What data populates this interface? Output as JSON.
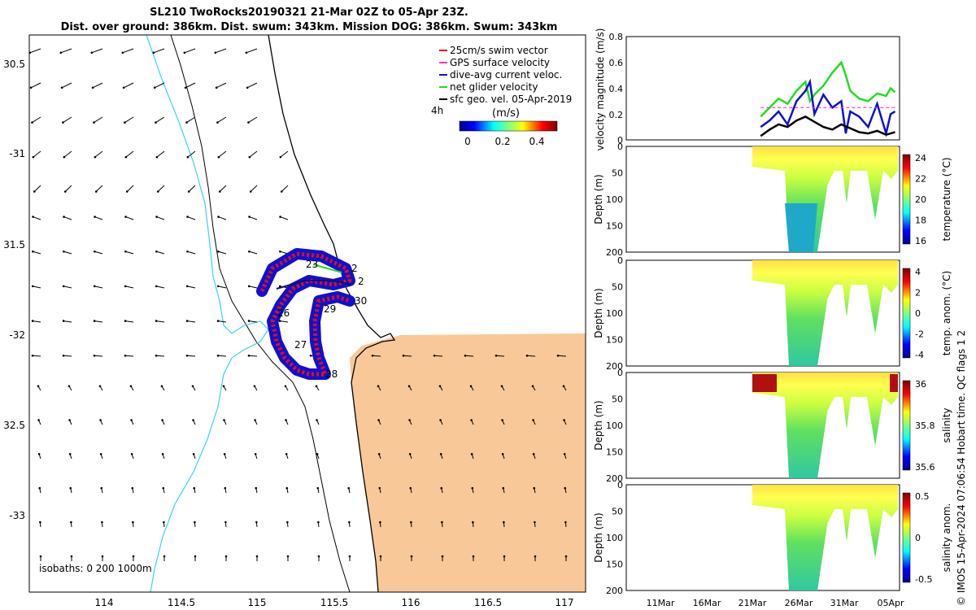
{
  "header": {
    "line1": "SL210 TwoRocks20190321 21-Mar 02Z to 05-Apr 23Z.",
    "line2": "Dist. over ground: 386km. Dist. swum: 343km. Mission DOG: 386km. Swum: 343km"
  },
  "map": {
    "lon_ticks": [
      "114",
      "114.5",
      "115",
      "115.5",
      "116",
      "116.5",
      "117"
    ],
    "lat_ticks": [
      "30.5",
      "-31",
      "31.5",
      "-32",
      "32.5",
      "-33"
    ],
    "isobaths_label": "isobaths: 0   200   1000m",
    "legend": [
      {
        "label": "25cm/s swim vector",
        "color": "#e01010"
      },
      {
        "label": "GPS surface velocity",
        "color": "#ff33cc"
      },
      {
        "label": "dive-avg current veloc.",
        "color": "#1010d0"
      },
      {
        "label": "net glider velocity",
        "color": "#22dd22"
      },
      {
        "label": "sfc geo. vel. 05-Apr-2019",
        "color": "#000000"
      }
    ],
    "colorbar_time": "4h",
    "colorbar_unit": "(m/s)",
    "colorbar_ticks": [
      "0",
      "0.2",
      "0.4"
    ],
    "day_labels": [
      "23",
      "2",
      "2",
      "30",
      "29",
      "26",
      "27",
      "28"
    ],
    "land_color": "#f9c898"
  },
  "chart_data": [
    {
      "type": "line",
      "title": "",
      "ylabel": "velocity magnitude (m/s)",
      "ylim": [
        0,
        0.8
      ],
      "yticks": [
        "0",
        "0.2",
        "0.4",
        "0.6",
        "0.8"
      ],
      "x_ticks": [
        "11Mar",
        "16Mar",
        "21Mar",
        "26Mar",
        "31Mar",
        "05Apr"
      ],
      "series": [
        {
          "name": "net glider velocity",
          "color": "#22dd22",
          "x": [
            21.0,
            22.0,
            23.0,
            24.0,
            25.0,
            26.0,
            26.5,
            27.0,
            28.0,
            29.0,
            30.0,
            30.5,
            31.0,
            32.0,
            33.0,
            34.0,
            35.0,
            35.5,
            36.0
          ],
          "y": [
            0.18,
            0.25,
            0.32,
            0.28,
            0.38,
            0.45,
            0.3,
            0.35,
            0.42,
            0.52,
            0.6,
            0.5,
            0.38,
            0.32,
            0.3,
            0.36,
            0.34,
            0.4,
            0.37
          ]
        },
        {
          "name": "dive-avg current veloc.",
          "color": "#1010d0",
          "x": [
            21.0,
            22.0,
            23.0,
            24.0,
            25.0,
            26.0,
            26.5,
            27.0,
            28.0,
            29.0,
            30.0,
            30.5,
            31.0,
            32.0,
            33.0,
            34.0,
            35.0,
            35.5,
            36.0
          ],
          "y": [
            0.1,
            0.15,
            0.22,
            0.12,
            0.3,
            0.38,
            0.45,
            0.2,
            0.35,
            0.25,
            0.3,
            0.05,
            0.22,
            0.18,
            0.1,
            0.28,
            0.05,
            0.2,
            0.22
          ]
        },
        {
          "name": "GPS surface velocity",
          "color": "#ff33cc",
          "x": [
            21.0,
            36.0
          ],
          "y": [
            0.25,
            0.25
          ]
        },
        {
          "name": "sfc geo. vel. 05-Apr-2019",
          "color": "#000000",
          "x": [
            21.0,
            22.0,
            23.0,
            24.0,
            25.0,
            26.0,
            27.0,
            28.0,
            29.0,
            30.0,
            31.0,
            32.0,
            33.0,
            34.0,
            35.0,
            36.0
          ],
          "y": [
            0.03,
            0.08,
            0.12,
            0.1,
            0.15,
            0.18,
            0.14,
            0.1,
            0.08,
            0.12,
            0.09,
            0.06,
            0.05,
            0.07,
            0.04,
            0.06
          ]
        }
      ]
    },
    {
      "type": "heatmap",
      "ylabel": "Depth (m)",
      "yticks": [
        "0",
        "50",
        "100",
        "150",
        "200"
      ],
      "colorbar_label": "temperature (°C)",
      "colorbar_ticks": [
        "24",
        "22",
        "20",
        "18",
        "16"
      ],
      "range": [
        15.5,
        26
      ]
    },
    {
      "type": "heatmap",
      "ylabel": "Depth (m)",
      "yticks": [
        "0",
        "50",
        "100",
        "150",
        "200"
      ],
      "colorbar_label": "temp. anom. (°C)",
      "colorbar_ticks": [
        "4",
        "2",
        "0",
        "-2",
        "-4"
      ],
      "range": [
        -4,
        4
      ]
    },
    {
      "type": "heatmap",
      "ylabel": "Depth (m)",
      "yticks": [
        "0",
        "50",
        "100",
        "150",
        "200"
      ],
      "colorbar_label": "salinity",
      "colorbar_ticks": [
        "36",
        "35.8",
        "35.6"
      ],
      "range": [
        35.5,
        36.1
      ]
    },
    {
      "type": "heatmap",
      "ylabel": "Depth (m)",
      "yticks": [
        "0",
        "50",
        "100",
        "150",
        "200"
      ],
      "colorbar_label": "salinity anom.",
      "colorbar_ticks": [
        "0.5",
        "0",
        "-0.5"
      ],
      "range": [
        -0.5,
        0.5
      ]
    }
  ],
  "footer": {
    "side_text": "© IMOS 15-Apr-2024 07:06:54 Hobart time. QC flags 1  2"
  }
}
